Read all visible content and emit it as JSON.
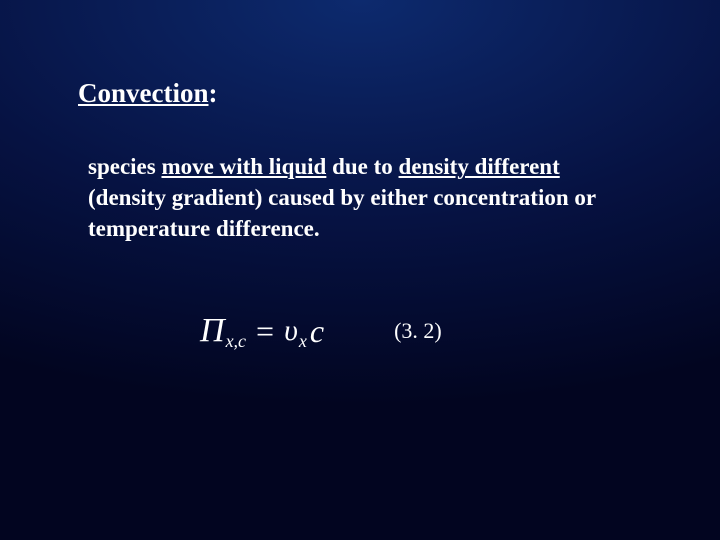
{
  "heading": {
    "word": "Convection",
    "colon": ":"
  },
  "body": {
    "pre": "species ",
    "u1": "move with liquid",
    "mid1": " due to ",
    "u2": "density different",
    "rest": " (density gradient) caused by either concentration or temperature difference."
  },
  "equation": {
    "Pi": "Π",
    "Pi_sub": "x,c",
    "eq": "=",
    "ups": "υ",
    "ups_sub": "x",
    "c": "c",
    "number": "(3. 2)"
  },
  "colors": {
    "text": "#ffffff"
  }
}
